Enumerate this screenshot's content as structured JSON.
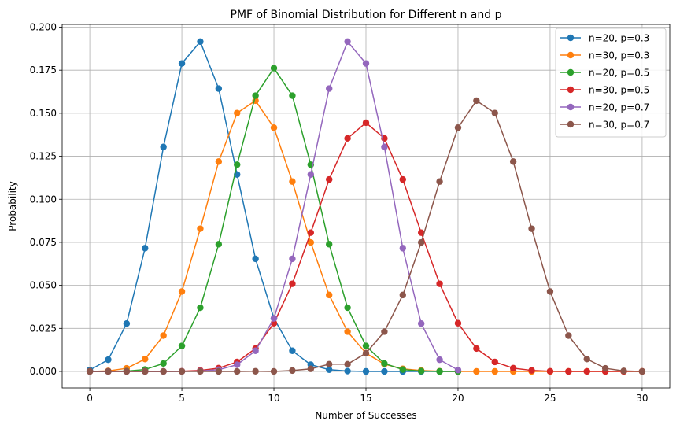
{
  "chart_data": {
    "type": "line",
    "title": "PMF of Binomial Distribution for Different n and p",
    "xlabel": "Number of Successes",
    "ylabel": "Probability",
    "xlim": [
      -1.5,
      31.5
    ],
    "ylim": [
      -0.0096,
      0.2016
    ],
    "xticks": [
      0,
      5,
      10,
      15,
      20,
      25,
      30
    ],
    "xtick_labels": [
      "0",
      "5",
      "10",
      "15",
      "20",
      "25",
      "30"
    ],
    "yticks": [
      0.0,
      0.025,
      0.05,
      0.075,
      0.1,
      0.125,
      0.15,
      0.175,
      0.2
    ],
    "ytick_labels": [
      "0.000",
      "0.025",
      "0.050",
      "0.075",
      "0.100",
      "0.125",
      "0.150",
      "0.175",
      "0.200"
    ],
    "grid": true,
    "legend_position": "top-right",
    "series": [
      {
        "name": "n=20, p=0.3",
        "color": "#1f77b4",
        "x": [
          0,
          1,
          2,
          3,
          4,
          5,
          6,
          7,
          8,
          9,
          10,
          11,
          12,
          13,
          14,
          15,
          16,
          17,
          18,
          19,
          20
        ],
        "values": [
          0.0008,
          0.0068,
          0.0278,
          0.0716,
          0.1304,
          0.1789,
          0.1916,
          0.1643,
          0.1144,
          0.0654,
          0.0308,
          0.012,
          0.0039,
          0.001,
          0.0002,
          0.0,
          0.0,
          0.0,
          0.0,
          0.0,
          0.0
        ]
      },
      {
        "name": "n=30, p=0.3",
        "color": "#ff7f0e",
        "x": [
          0,
          1,
          2,
          3,
          4,
          5,
          6,
          7,
          8,
          9,
          10,
          11,
          12,
          13,
          14,
          15,
          16,
          17,
          18,
          19,
          20,
          21,
          22,
          23,
          24,
          25,
          26,
          27,
          28,
          29,
          30
        ],
        "values": [
          0.0,
          0.0003,
          0.0018,
          0.0072,
          0.0208,
          0.0464,
          0.0829,
          0.1219,
          0.1501,
          0.1573,
          0.1416,
          0.1103,
          0.0749,
          0.0444,
          0.0231,
          0.0106,
          0.0042,
          0.0015,
          0.0005,
          0.0001,
          0.0,
          0.0,
          0.0,
          0.0,
          0.0,
          0.0,
          0.0,
          0.0,
          0.0,
          0.0,
          0.0
        ]
      },
      {
        "name": "n=20, p=0.5",
        "color": "#2ca02c",
        "x": [
          0,
          1,
          2,
          3,
          4,
          5,
          6,
          7,
          8,
          9,
          10,
          11,
          12,
          13,
          14,
          15,
          16,
          17,
          18,
          19,
          20
        ],
        "values": [
          0.0,
          0.0,
          0.0002,
          0.0011,
          0.0046,
          0.0148,
          0.037,
          0.0739,
          0.1201,
          0.1602,
          0.1762,
          0.1602,
          0.1201,
          0.0739,
          0.037,
          0.0148,
          0.0046,
          0.0011,
          0.0002,
          0.0,
          0.0
        ]
      },
      {
        "name": "n=30, p=0.5",
        "color": "#d62728",
        "x": [
          0,
          1,
          2,
          3,
          4,
          5,
          6,
          7,
          8,
          9,
          10,
          11,
          12,
          13,
          14,
          15,
          16,
          17,
          18,
          19,
          20,
          21,
          22,
          23,
          24,
          25,
          26,
          27,
          28,
          29,
          30
        ],
        "values": [
          0.0,
          0.0,
          0.0,
          0.0,
          0.0,
          0.0001,
          0.0006,
          0.0019,
          0.0055,
          0.0133,
          0.028,
          0.0509,
          0.0806,
          0.1115,
          0.1354,
          0.1445,
          0.1354,
          0.1115,
          0.0806,
          0.0509,
          0.028,
          0.0133,
          0.0055,
          0.0019,
          0.0006,
          0.0001,
          0.0,
          0.0,
          0.0,
          0.0,
          0.0
        ]
      },
      {
        "name": "n=20, p=0.7",
        "color": "#9467bd",
        "x": [
          0,
          1,
          2,
          3,
          4,
          5,
          6,
          7,
          8,
          9,
          10,
          11,
          12,
          13,
          14,
          15,
          16,
          17,
          18,
          19,
          20
        ],
        "values": [
          0.0,
          0.0,
          0.0,
          0.0,
          0.0,
          0.0,
          0.0002,
          0.001,
          0.0039,
          0.012,
          0.0308,
          0.0654,
          0.1144,
          0.1643,
          0.1916,
          0.1789,
          0.1304,
          0.0716,
          0.0278,
          0.0068,
          0.0008
        ]
      },
      {
        "name": "n=30, p=0.7",
        "color": "#8c564b",
        "x": [
          0,
          1,
          2,
          3,
          4,
          5,
          6,
          7,
          8,
          9,
          10,
          11,
          12,
          13,
          14,
          15,
          16,
          17,
          18,
          19,
          20,
          21,
          22,
          23,
          24,
          25,
          26,
          27,
          28,
          29,
          30
        ],
        "values": [
          0.0,
          0.0,
          0.0,
          0.0,
          0.0,
          0.0,
          0.0,
          0.0,
          0.0,
          0.0001,
          0.0,
          0.0005,
          0.0015,
          0.0042,
          0.0042,
          0.0106,
          0.0231,
          0.0444,
          0.0749,
          0.1103,
          0.1416,
          0.1573,
          0.1501,
          0.1219,
          0.0829,
          0.0464,
          0.0208,
          0.0072,
          0.0018,
          0.0003,
          0.0
        ]
      }
    ]
  }
}
